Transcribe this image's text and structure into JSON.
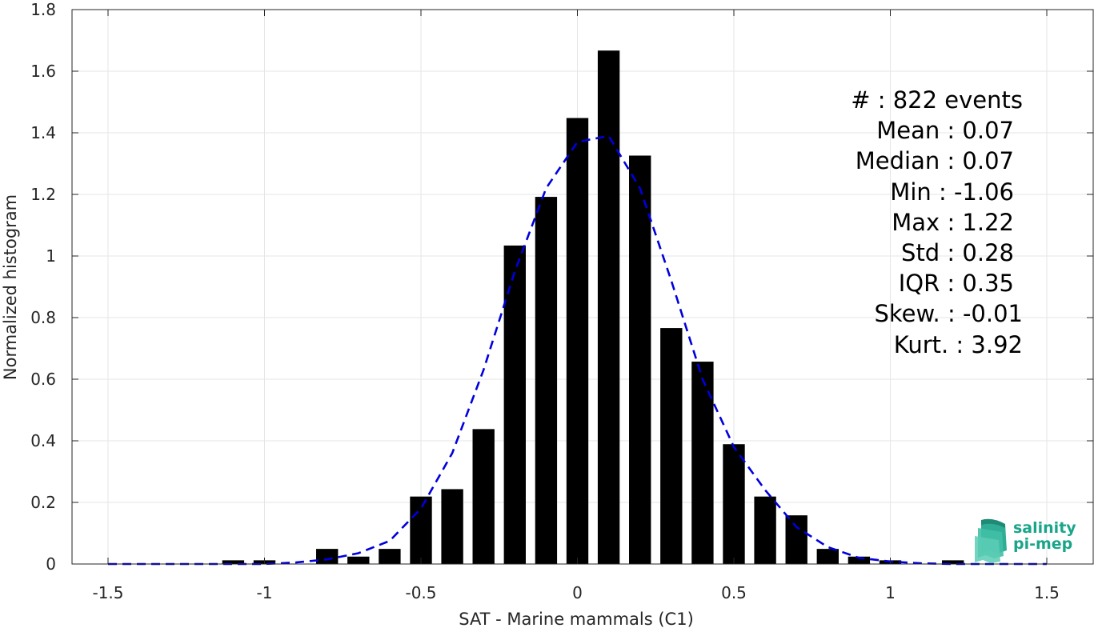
{
  "chart_data": {
    "type": "bar",
    "xlabel": "SAT - Marine mammals (C1)",
    "ylabel": "Normalized histogram",
    "xlim": [
      -1.5,
      1.5
    ],
    "ylim": [
      0,
      1.8
    ],
    "x_ticks": [
      "-1.5",
      "-1",
      "-0.5",
      "0",
      "0.5",
      "1",
      "1.5"
    ],
    "y_ticks": [
      "0",
      "0.2",
      "0.4",
      "0.6",
      "0.8",
      "1",
      "1.2",
      "1.4",
      "1.6",
      "1.8"
    ],
    "grid": true,
    "bar_color": "#000000",
    "bin_width": 0.1,
    "bins": [
      {
        "x": -1.1,
        "y": 0.012
      },
      {
        "x": -1.0,
        "y": 0.012
      },
      {
        "x": -0.8,
        "y": 0.049
      },
      {
        "x": -0.7,
        "y": 0.024
      },
      {
        "x": -0.6,
        "y": 0.049
      },
      {
        "x": -0.5,
        "y": 0.219
      },
      {
        "x": -0.4,
        "y": 0.243
      },
      {
        "x": -0.3,
        "y": 0.438
      },
      {
        "x": -0.2,
        "y": 1.034
      },
      {
        "x": -0.1,
        "y": 1.192
      },
      {
        "x": 0.0,
        "y": 1.448
      },
      {
        "x": 0.1,
        "y": 1.667
      },
      {
        "x": 0.2,
        "y": 1.326
      },
      {
        "x": 0.3,
        "y": 0.766
      },
      {
        "x": 0.4,
        "y": 0.657
      },
      {
        "x": 0.5,
        "y": 0.389
      },
      {
        "x": 0.6,
        "y": 0.219
      },
      {
        "x": 0.7,
        "y": 0.158
      },
      {
        "x": 0.8,
        "y": 0.049
      },
      {
        "x": 0.9,
        "y": 0.024
      },
      {
        "x": 1.0,
        "y": 0.012
      },
      {
        "x": 1.2,
        "y": 0.012
      }
    ],
    "fit_curve": {
      "color": "#0000dd",
      "style": "dashed",
      "x": [
        -1.5,
        -1.4,
        -1.3,
        -1.2,
        -1.1,
        -1.0,
        -0.9,
        -0.8,
        -0.7,
        -0.6,
        -0.5,
        -0.4,
        -0.3,
        -0.2,
        -0.1,
        0.0,
        0.1,
        0.2,
        0.3,
        0.4,
        0.5,
        0.6,
        0.7,
        0.8,
        0.9,
        1.0,
        1.1,
        1.2,
        1.3,
        1.4,
        1.5
      ],
      "y": [
        0.0,
        0.0,
        0.0,
        0.0,
        0.0,
        0.0,
        0.005,
        0.015,
        0.035,
        0.075,
        0.18,
        0.36,
        0.63,
        0.95,
        1.22,
        1.37,
        1.39,
        1.22,
        0.92,
        0.6,
        0.38,
        0.24,
        0.12,
        0.055,
        0.02,
        0.008,
        0.002,
        0.0,
        0.0,
        0.0,
        0.0
      ]
    },
    "annotations": [
      "#  : 822 events",
      "Mean : 0.07",
      "Median : 0.07",
      "Min : -1.06",
      "Max : 1.22",
      "Std : 0.28",
      "IQR : 0.35",
      "Skew. : -0.01",
      "Kurt. : 3.92"
    ]
  },
  "logo": {
    "line1": "salinity",
    "line2": "pi-mep",
    "color": "#1aa58a"
  }
}
